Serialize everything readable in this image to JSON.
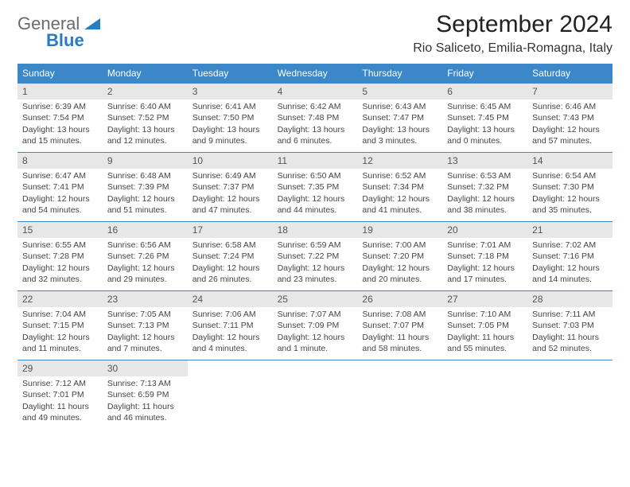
{
  "logo": {
    "line1": "General",
    "line2": "Blue"
  },
  "title": "September 2024",
  "location": "Rio Saliceto, Emilia-Romagna, Italy",
  "colors": {
    "header_bg": "#3b87c8",
    "daynum_bg": "#e7e7e7",
    "week_border": "#3b87c8",
    "text": "#444444",
    "logo_gray": "#6b6b6b",
    "logo_blue": "#2b7bbf"
  },
  "weekdays": [
    "Sunday",
    "Monday",
    "Tuesday",
    "Wednesday",
    "Thursday",
    "Friday",
    "Saturday"
  ],
  "weeks": [
    [
      {
        "n": "1",
        "sr": "Sunrise: 6:39 AM",
        "ss": "Sunset: 7:54 PM",
        "d1": "Daylight: 13 hours",
        "d2": "and 15 minutes."
      },
      {
        "n": "2",
        "sr": "Sunrise: 6:40 AM",
        "ss": "Sunset: 7:52 PM",
        "d1": "Daylight: 13 hours",
        "d2": "and 12 minutes."
      },
      {
        "n": "3",
        "sr": "Sunrise: 6:41 AM",
        "ss": "Sunset: 7:50 PM",
        "d1": "Daylight: 13 hours",
        "d2": "and 9 minutes."
      },
      {
        "n": "4",
        "sr": "Sunrise: 6:42 AM",
        "ss": "Sunset: 7:48 PM",
        "d1": "Daylight: 13 hours",
        "d2": "and 6 minutes."
      },
      {
        "n": "5",
        "sr": "Sunrise: 6:43 AM",
        "ss": "Sunset: 7:47 PM",
        "d1": "Daylight: 13 hours",
        "d2": "and 3 minutes."
      },
      {
        "n": "6",
        "sr": "Sunrise: 6:45 AM",
        "ss": "Sunset: 7:45 PM",
        "d1": "Daylight: 13 hours",
        "d2": "and 0 minutes."
      },
      {
        "n": "7",
        "sr": "Sunrise: 6:46 AM",
        "ss": "Sunset: 7:43 PM",
        "d1": "Daylight: 12 hours",
        "d2": "and 57 minutes."
      }
    ],
    [
      {
        "n": "8",
        "sr": "Sunrise: 6:47 AM",
        "ss": "Sunset: 7:41 PM",
        "d1": "Daylight: 12 hours",
        "d2": "and 54 minutes."
      },
      {
        "n": "9",
        "sr": "Sunrise: 6:48 AM",
        "ss": "Sunset: 7:39 PM",
        "d1": "Daylight: 12 hours",
        "d2": "and 51 minutes."
      },
      {
        "n": "10",
        "sr": "Sunrise: 6:49 AM",
        "ss": "Sunset: 7:37 PM",
        "d1": "Daylight: 12 hours",
        "d2": "and 47 minutes."
      },
      {
        "n": "11",
        "sr": "Sunrise: 6:50 AM",
        "ss": "Sunset: 7:35 PM",
        "d1": "Daylight: 12 hours",
        "d2": "and 44 minutes."
      },
      {
        "n": "12",
        "sr": "Sunrise: 6:52 AM",
        "ss": "Sunset: 7:34 PM",
        "d1": "Daylight: 12 hours",
        "d2": "and 41 minutes."
      },
      {
        "n": "13",
        "sr": "Sunrise: 6:53 AM",
        "ss": "Sunset: 7:32 PM",
        "d1": "Daylight: 12 hours",
        "d2": "and 38 minutes."
      },
      {
        "n": "14",
        "sr": "Sunrise: 6:54 AM",
        "ss": "Sunset: 7:30 PM",
        "d1": "Daylight: 12 hours",
        "d2": "and 35 minutes."
      }
    ],
    [
      {
        "n": "15",
        "sr": "Sunrise: 6:55 AM",
        "ss": "Sunset: 7:28 PM",
        "d1": "Daylight: 12 hours",
        "d2": "and 32 minutes."
      },
      {
        "n": "16",
        "sr": "Sunrise: 6:56 AM",
        "ss": "Sunset: 7:26 PM",
        "d1": "Daylight: 12 hours",
        "d2": "and 29 minutes."
      },
      {
        "n": "17",
        "sr": "Sunrise: 6:58 AM",
        "ss": "Sunset: 7:24 PM",
        "d1": "Daylight: 12 hours",
        "d2": "and 26 minutes."
      },
      {
        "n": "18",
        "sr": "Sunrise: 6:59 AM",
        "ss": "Sunset: 7:22 PM",
        "d1": "Daylight: 12 hours",
        "d2": "and 23 minutes."
      },
      {
        "n": "19",
        "sr": "Sunrise: 7:00 AM",
        "ss": "Sunset: 7:20 PM",
        "d1": "Daylight: 12 hours",
        "d2": "and 20 minutes."
      },
      {
        "n": "20",
        "sr": "Sunrise: 7:01 AM",
        "ss": "Sunset: 7:18 PM",
        "d1": "Daylight: 12 hours",
        "d2": "and 17 minutes."
      },
      {
        "n": "21",
        "sr": "Sunrise: 7:02 AM",
        "ss": "Sunset: 7:16 PM",
        "d1": "Daylight: 12 hours",
        "d2": "and 14 minutes."
      }
    ],
    [
      {
        "n": "22",
        "sr": "Sunrise: 7:04 AM",
        "ss": "Sunset: 7:15 PM",
        "d1": "Daylight: 12 hours",
        "d2": "and 11 minutes."
      },
      {
        "n": "23",
        "sr": "Sunrise: 7:05 AM",
        "ss": "Sunset: 7:13 PM",
        "d1": "Daylight: 12 hours",
        "d2": "and 7 minutes."
      },
      {
        "n": "24",
        "sr": "Sunrise: 7:06 AM",
        "ss": "Sunset: 7:11 PM",
        "d1": "Daylight: 12 hours",
        "d2": "and 4 minutes."
      },
      {
        "n": "25",
        "sr": "Sunrise: 7:07 AM",
        "ss": "Sunset: 7:09 PM",
        "d1": "Daylight: 12 hours",
        "d2": "and 1 minute."
      },
      {
        "n": "26",
        "sr": "Sunrise: 7:08 AM",
        "ss": "Sunset: 7:07 PM",
        "d1": "Daylight: 11 hours",
        "d2": "and 58 minutes."
      },
      {
        "n": "27",
        "sr": "Sunrise: 7:10 AM",
        "ss": "Sunset: 7:05 PM",
        "d1": "Daylight: 11 hours",
        "d2": "and 55 minutes."
      },
      {
        "n": "28",
        "sr": "Sunrise: 7:11 AM",
        "ss": "Sunset: 7:03 PM",
        "d1": "Daylight: 11 hours",
        "d2": "and 52 minutes."
      }
    ],
    [
      {
        "n": "29",
        "sr": "Sunrise: 7:12 AM",
        "ss": "Sunset: 7:01 PM",
        "d1": "Daylight: 11 hours",
        "d2": "and 49 minutes."
      },
      {
        "n": "30",
        "sr": "Sunrise: 7:13 AM",
        "ss": "Sunset: 6:59 PM",
        "d1": "Daylight: 11 hours",
        "d2": "and 46 minutes."
      },
      {
        "empty": true
      },
      {
        "empty": true
      },
      {
        "empty": true
      },
      {
        "empty": true
      },
      {
        "empty": true
      }
    ]
  ]
}
